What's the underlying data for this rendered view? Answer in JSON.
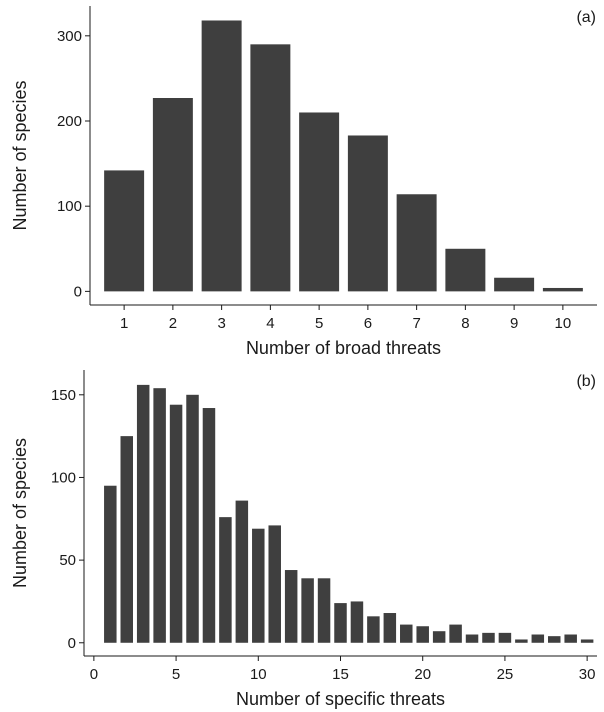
{
  "chart_data": [
    {
      "type": "bar",
      "panel_label": "(a)",
      "xlabel": "Number of broad threats",
      "ylabel": "Number of species",
      "categories": [
        1,
        2,
        3,
        4,
        5,
        6,
        7,
        8,
        9,
        10
      ],
      "values": [
        142,
        227,
        318,
        290,
        210,
        183,
        114,
        50,
        16,
        4
      ],
      "x_ticks": [
        1,
        2,
        3,
        4,
        5,
        6,
        7,
        8,
        9,
        10
      ],
      "y_ticks": [
        0,
        100,
        200,
        300
      ],
      "xlim": [
        0.3,
        10.7
      ],
      "ylim": [
        -16,
        335
      ],
      "grid": false
    },
    {
      "type": "bar",
      "panel_label": "(b)",
      "xlabel": "Number of specific threats",
      "ylabel": "Number of species",
      "categories": [
        1,
        2,
        3,
        4,
        5,
        6,
        7,
        8,
        9,
        10,
        11,
        12,
        13,
        14,
        15,
        16,
        17,
        18,
        19,
        20,
        21,
        22,
        23,
        24,
        25,
        26,
        27,
        28,
        29,
        30
      ],
      "values": [
        95,
        125,
        156,
        154,
        144,
        150,
        142,
        76,
        86,
        69,
        71,
        44,
        39,
        39,
        24,
        25,
        16,
        18,
        11,
        10,
        7,
        11,
        5,
        6,
        6,
        2,
        5,
        4,
        5,
        2
      ],
      "x_ticks": [
        0,
        5,
        10,
        15,
        20,
        25,
        30
      ],
      "y_ticks": [
        0,
        50,
        100,
        150
      ],
      "xlim": [
        -0.6,
        30.6
      ],
      "ylim": [
        -8,
        165
      ],
      "grid": false
    }
  ]
}
